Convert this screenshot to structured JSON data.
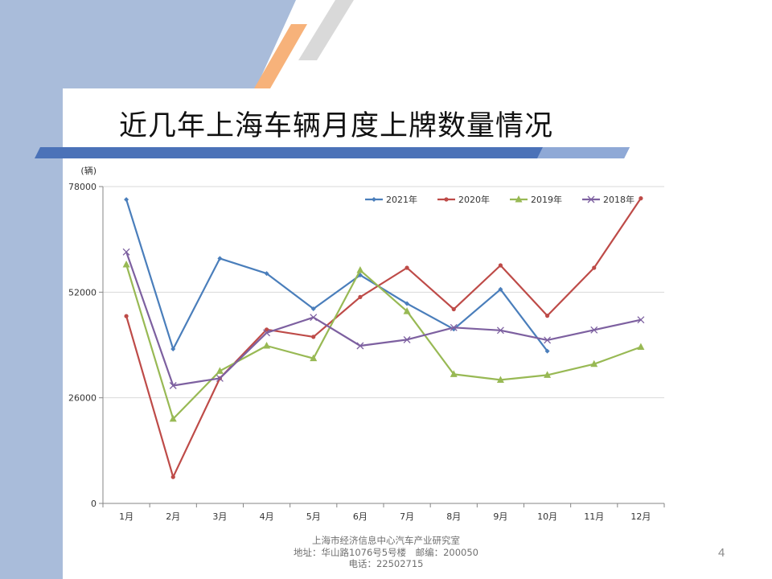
{
  "slide": {
    "title": "近几年上海车辆月度上牌数量情况",
    "footer_line1": "上海市经济信息中心汽车产业研究室",
    "footer_line2": "地址：华山路1076号5号楼　邮编：200050",
    "footer_line3": "电话：22502715",
    "page_number": "4"
  },
  "colors": {
    "left_band": "#a9bcda",
    "title_bar": "#4b72b8",
    "orange_stripe": "#f7b27a",
    "gray_stripe": "#d9d9d9"
  },
  "chart_data": {
    "type": "line",
    "unit_label": "(辆)",
    "categories": [
      "1月",
      "2月",
      "3月",
      "4月",
      "5月",
      "6月",
      "7月",
      "8月",
      "9月",
      "10月",
      "11月",
      "12月"
    ],
    "y_ticks": [
      "0",
      "26000",
      "52000",
      "78000"
    ],
    "ylim": [
      0,
      78000
    ],
    "grid": true,
    "legend_position": "top-right",
    "series": [
      {
        "name": "2021年",
        "color": "#4a7ebb",
        "marker": "diamond",
        "values": [
          74800,
          38000,
          60300,
          56600,
          47900,
          56200,
          49200,
          42900,
          52700,
          37500,
          null,
          null
        ]
      },
      {
        "name": "2020年",
        "color": "#be4b48",
        "marker": "circle",
        "values": [
          46100,
          6500,
          30800,
          42800,
          41000,
          50800,
          58000,
          47800,
          58600,
          46200,
          58000,
          75100
        ]
      },
      {
        "name": "2019年",
        "color": "#98b954",
        "marker": "triangle",
        "values": [
          58800,
          20800,
          32600,
          38800,
          35700,
          57400,
          47300,
          31800,
          30400,
          31600,
          34300,
          38500
        ]
      },
      {
        "name": "2018年",
        "color": "#7d60a0",
        "marker": "x",
        "values": [
          61900,
          29000,
          30800,
          42000,
          45800,
          38800,
          40300,
          43300,
          42600,
          40200,
          42700,
          45200
        ]
      }
    ]
  }
}
